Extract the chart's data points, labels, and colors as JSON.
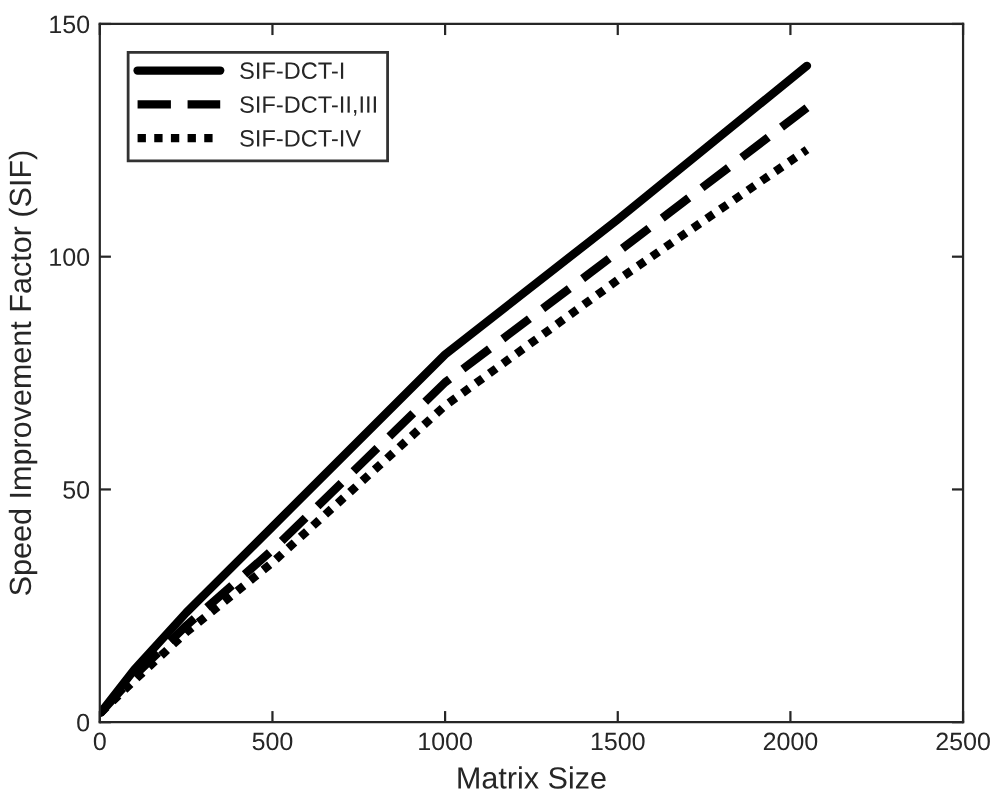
{
  "chart_data": {
    "type": "line",
    "xlabel": "Matrix Size",
    "ylabel": "Speed Improvement Factor (SIF)",
    "xlim": [
      0,
      2500
    ],
    "xticks": [
      0,
      500,
      1000,
      1500,
      2000,
      2500
    ],
    "ylim": [
      0,
      150
    ],
    "yticks": [
      0,
      50,
      100,
      150
    ],
    "grid": false,
    "legend": "top left",
    "marker": "none",
    "series": [
      {
        "name": "SIF-DCT-I",
        "color": "#000000",
        "line_style": "solid",
        "x": [
          2,
          100,
          250,
          500,
          1000,
          1500,
          2048
        ],
        "values": [
          2,
          11.3,
          23.5,
          42,
          79,
          108,
          141
        ]
      },
      {
        "name": "SIF-DCT-II,III",
        "color": "#000000",
        "line_style": "dashed",
        "x": [
          2,
          100,
          250,
          500,
          1000,
          1500,
          2048
        ],
        "values": [
          2,
          10,
          20.7,
          37,
          73,
          101,
          132
        ]
      },
      {
        "name": "SIF-DCT-IV",
        "color": "#000000",
        "line_style": "dotted",
        "x": [
          2,
          100,
          250,
          500,
          1000,
          1500,
          2048
        ],
        "values": [
          2,
          9,
          19.3,
          34.3,
          68,
          95,
          123
        ]
      }
    ]
  }
}
